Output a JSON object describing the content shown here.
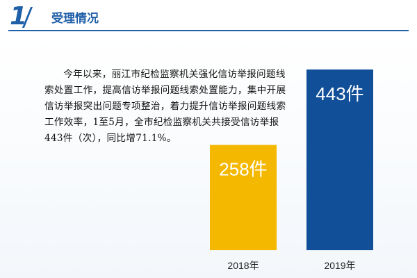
{
  "header": {
    "section_number": "1",
    "section_title": "受理情况"
  },
  "body": {
    "paragraph": "今年以来，丽江市纪检监察机关强化信访举报问题线索处置工作，提高信访举报问题线索处置能力，集中开展信访举报突出问题专项整治，着力提升信访举报问题线索工作效率，1至5月，全市纪检监察机关共接受信访举报443件（次），同比增71.1%。"
  },
  "colors": {
    "accent": "#1f5fa8",
    "bar_2018": "#f4b800",
    "bar_2019": "#114f98"
  },
  "chart_data": {
    "type": "bar",
    "categories": [
      "2018年",
      "2019年"
    ],
    "values": [
      258,
      443
    ],
    "value_labels": [
      "258件",
      "443件"
    ],
    "unit": "件",
    "title": "",
    "xlabel": "",
    "ylabel": "",
    "ylim": [
      0,
      460
    ],
    "grid": false,
    "legend": "none"
  }
}
